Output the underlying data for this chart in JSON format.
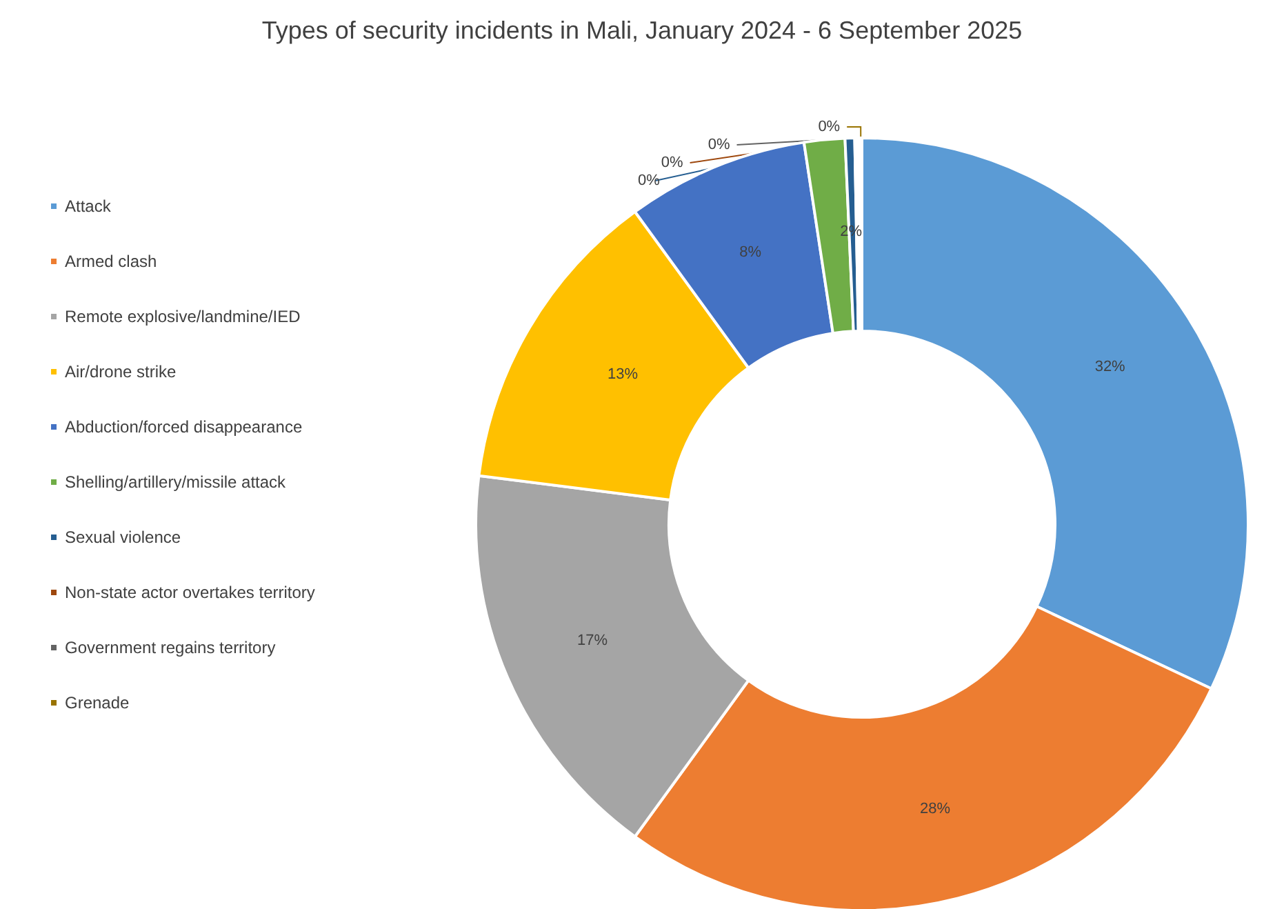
{
  "chart_data": {
    "type": "donut",
    "title": "Types of security incidents in Mali, January 2024 - 6 September 2025",
    "categories": [
      "Attack",
      "Armed clash",
      "Remote explosive/landmine/IED",
      "Air/drone strike",
      "Abduction/forced disappearance",
      "Shelling/artillery/missile attack",
      "Sexual violence",
      "Non-state actor overtakes territory",
      "Government regains territory",
      "Grenade"
    ],
    "values": [
      32,
      28,
      17,
      13,
      7.6,
      1.7,
      0.4,
      0.1,
      0.1,
      0.1
    ],
    "value_labels": [
      "32%",
      "28%",
      "17%",
      "13%",
      "8%",
      "2%",
      "0%",
      "0%",
      "0%",
      "0%"
    ],
    "colors": [
      "#5b9bd5",
      "#ed7d31",
      "#a5a5a5",
      "#ffc000",
      "#4472c4",
      "#70ad47",
      "#255e91",
      "#9e480e",
      "#636363",
      "#997300"
    ],
    "legend": "left"
  }
}
